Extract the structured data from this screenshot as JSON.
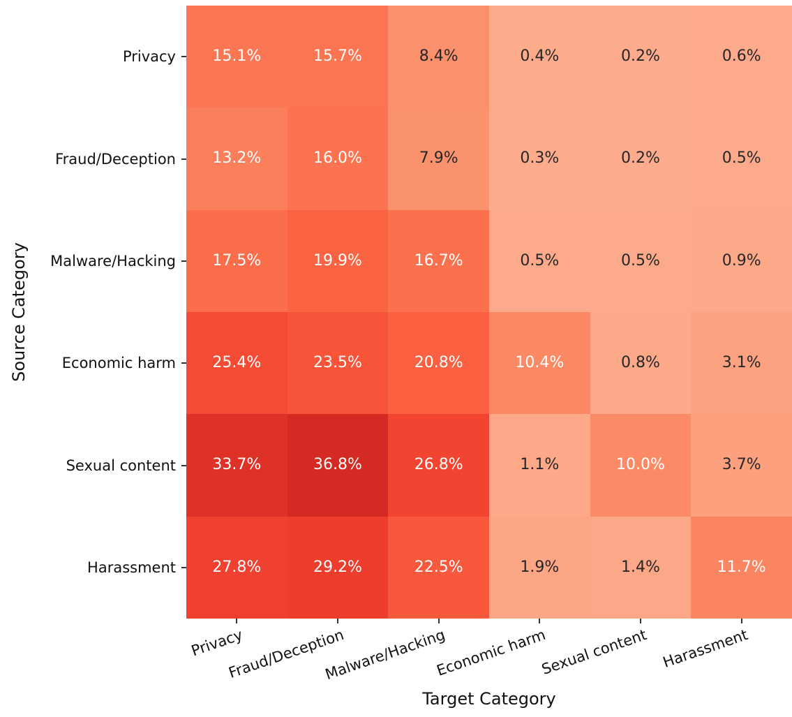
{
  "chart_data": {
    "type": "heatmap",
    "xlabel": "Target Category",
    "ylabel": "Source Category",
    "row_categories": [
      "Privacy",
      "Fraud/Deception",
      "Malware/Hacking",
      "Economic harm",
      "Sexual content",
      "Harassment"
    ],
    "col_categories": [
      "Privacy",
      "Fraud/Deception",
      "Malware/Hacking",
      "Economic harm",
      "Sexual content",
      "Harassment"
    ],
    "values": [
      [
        15.1,
        15.7,
        8.4,
        0.4,
        0.2,
        0.6
      ],
      [
        13.2,
        16.0,
        7.9,
        0.3,
        0.2,
        0.5
      ],
      [
        17.5,
        19.9,
        16.7,
        0.5,
        0.5,
        0.9
      ],
      [
        25.4,
        23.5,
        20.8,
        10.4,
        0.8,
        3.1
      ],
      [
        33.7,
        36.8,
        26.8,
        1.1,
        10.0,
        3.7
      ],
      [
        27.8,
        29.2,
        22.5,
        1.9,
        1.4,
        11.7
      ]
    ],
    "value_suffix": "%",
    "value_decimals": 1,
    "grid": false,
    "legend": "none",
    "colormap": {
      "name": "Reds-like",
      "stops": [
        {
          "v": 0.0,
          "color": "#fcac8d"
        },
        {
          "v": 10.4,
          "color": "#fb8a64"
        },
        {
          "v": 20.8,
          "color": "#fb6040"
        },
        {
          "v": 27.8,
          "color": "#f0402f"
        },
        {
          "v": 36.8,
          "color": "#d42a24"
        }
      ]
    },
    "annotation_colors": {
      "light_text": "#ffffff",
      "dark_text": "#262626",
      "white_text_threshold": 9.5
    },
    "tick_color": "#333333",
    "text_color": "#111111"
  }
}
